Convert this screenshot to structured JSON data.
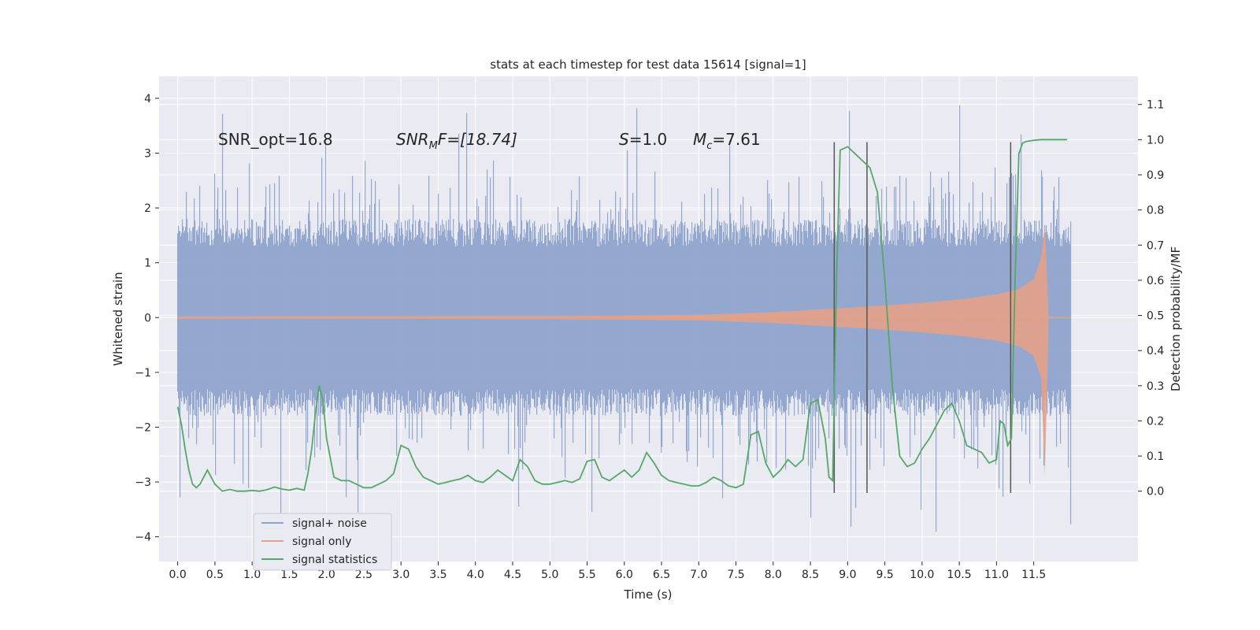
{
  "chart_data": {
    "type": "line",
    "title": "stats at each timestep for test data 15614 [signal=1]",
    "xlabel": "Time (s)",
    "ylabel": "Whitened strain",
    "y2label": "Detection probability/MF",
    "xlim": [
      -0.25,
      12.9
    ],
    "ylim": [
      -4.45,
      4.4
    ],
    "y2lim": [
      -0.2,
      1.18
    ],
    "x_ticks": [
      0.0,
      0.5,
      1.0,
      1.5,
      2.0,
      2.5,
      3.0,
      3.5,
      4.0,
      4.5,
      5.0,
      5.5,
      6.0,
      6.5,
      7.0,
      7.5,
      8.0,
      8.5,
      9.0,
      9.5,
      10.0,
      10.5,
      11.0,
      11.5
    ],
    "x_tick_labels": [
      "0.0",
      "0.5",
      "1.0",
      "1.5",
      "2.0",
      "2.5",
      "3.0",
      "3.5",
      "4.0",
      "4.5",
      "5.0",
      "5.5",
      "6.0",
      "6.5",
      "7.0",
      "7.5",
      "8.0",
      "8.5",
      "9.0",
      "9.5",
      "10.0",
      "10.5",
      "11.0",
      "11.5"
    ],
    "y_ticks": [
      -4,
      -3,
      -2,
      -1,
      0,
      1,
      2,
      3,
      4
    ],
    "y_tick_labels": [
      "−4",
      "−3",
      "−2",
      "−1",
      "0",
      "1",
      "2",
      "3",
      "4"
    ],
    "y2_ticks": [
      0.0,
      0.1,
      0.2,
      0.3,
      0.4,
      0.5,
      0.6,
      0.7,
      0.8,
      0.9,
      1.0,
      1.1
    ],
    "y2_tick_labels": [
      "0.0",
      "0.1",
      "0.2",
      "0.3",
      "0.4",
      "0.5",
      "0.6",
      "0.7",
      "0.8",
      "0.9",
      "1.0",
      "1.1"
    ],
    "grid": true,
    "legend_position": "lower-left",
    "colors": {
      "background": "#eaeaf2",
      "grid": "#ffffff",
      "noise": "#8fa3cc",
      "signal": "#e3a287",
      "stats": "#55a868",
      "vlines": "#555555"
    },
    "series": [
      {
        "name": "signal+ noise",
        "description_values": "noisy whitened strain, envelope approx ±1.3 typical with peaks to ±4",
        "t_range": [
          0.0,
          12.0
        ],
        "typical_amplitude": 1.3,
        "max_amplitude": 4.05
      },
      {
        "name": "signal only",
        "t_range": [
          0.0,
          12.0
        ],
        "envelope": {
          "t": [
            0.0,
            5.0,
            7.0,
            8.0,
            8.5,
            9.0,
            9.5,
            10.0,
            10.5,
            11.0,
            11.3,
            11.5,
            11.6,
            11.65,
            11.7
          ],
          "amp": [
            0.02,
            0.03,
            0.05,
            0.1,
            0.14,
            0.18,
            0.22,
            0.27,
            0.33,
            0.42,
            0.52,
            0.7,
            1.1,
            1.7,
            0.05
          ]
        }
      },
      {
        "name": "signal statistics",
        "axis": "right",
        "x": [
          0.0,
          0.05,
          0.1,
          0.15,
          0.2,
          0.25,
          0.3,
          0.35,
          0.4,
          0.45,
          0.5,
          0.6,
          0.7,
          0.8,
          0.9,
          1.0,
          1.1,
          1.2,
          1.3,
          1.4,
          1.5,
          1.6,
          1.7,
          1.75,
          1.8,
          1.85,
          1.9,
          1.95,
          2.0,
          2.1,
          2.2,
          2.3,
          2.4,
          2.5,
          2.6,
          2.7,
          2.8,
          2.9,
          3.0,
          3.1,
          3.2,
          3.3,
          3.4,
          3.5,
          3.6,
          3.7,
          3.8,
          3.9,
          4.0,
          4.1,
          4.2,
          4.3,
          4.4,
          4.5,
          4.6,
          4.7,
          4.8,
          4.9,
          5.0,
          5.1,
          5.2,
          5.3,
          5.4,
          5.5,
          5.6,
          5.7,
          5.8,
          5.9,
          6.0,
          6.1,
          6.2,
          6.3,
          6.4,
          6.5,
          6.6,
          6.7,
          6.8,
          6.9,
          7.0,
          7.1,
          7.2,
          7.3,
          7.4,
          7.5,
          7.6,
          7.7,
          7.8,
          7.9,
          8.0,
          8.1,
          8.2,
          8.3,
          8.4,
          8.5,
          8.6,
          8.7,
          8.75,
          8.8,
          8.85,
          8.9,
          9.0,
          9.1,
          9.2,
          9.3,
          9.4,
          9.5,
          9.6,
          9.7,
          9.8,
          9.9,
          10.0,
          10.1,
          10.2,
          10.3,
          10.4,
          10.5,
          10.6,
          10.7,
          10.8,
          10.9,
          11.0,
          11.05,
          11.1,
          11.15,
          11.2,
          11.25,
          11.3,
          11.35,
          11.4,
          11.5,
          11.6,
          11.8,
          11.95
        ],
        "values": [
          0.24,
          0.19,
          0.12,
          0.06,
          0.02,
          0.01,
          0.02,
          0.04,
          0.06,
          0.04,
          0.02,
          0.0,
          0.005,
          0.0,
          0.0,
          0.002,
          0.0,
          0.004,
          0.012,
          0.006,
          0.003,
          0.008,
          0.003,
          0.05,
          0.12,
          0.22,
          0.3,
          0.26,
          0.15,
          0.04,
          0.03,
          0.03,
          0.02,
          0.01,
          0.01,
          0.02,
          0.03,
          0.05,
          0.13,
          0.12,
          0.07,
          0.04,
          0.03,
          0.02,
          0.025,
          0.03,
          0.035,
          0.045,
          0.03,
          0.025,
          0.04,
          0.06,
          0.045,
          0.03,
          0.09,
          0.07,
          0.03,
          0.02,
          0.02,
          0.025,
          0.03,
          0.025,
          0.035,
          0.085,
          0.09,
          0.04,
          0.03,
          0.045,
          0.06,
          0.04,
          0.06,
          0.11,
          0.08,
          0.045,
          0.03,
          0.025,
          0.02,
          0.015,
          0.015,
          0.025,
          0.04,
          0.03,
          0.015,
          0.01,
          0.02,
          0.16,
          0.17,
          0.08,
          0.04,
          0.06,
          0.09,
          0.07,
          0.09,
          0.25,
          0.26,
          0.15,
          0.04,
          0.03,
          0.6,
          0.97,
          0.98,
          0.96,
          0.94,
          0.92,
          0.85,
          0.6,
          0.3,
          0.1,
          0.07,
          0.08,
          0.12,
          0.15,
          0.19,
          0.23,
          0.25,
          0.2,
          0.13,
          0.12,
          0.11,
          0.08,
          0.09,
          0.2,
          0.19,
          0.13,
          0.15,
          0.6,
          0.96,
          0.99,
          0.995,
          0.998,
          1.0,
          1.0,
          1.0
        ]
      }
    ],
    "vertical_lines": [
      8.82,
      9.26,
      11.19
    ],
    "annotations": [
      {
        "x": 0.22,
        "y": 3.2,
        "text": "SNR_opt=16.8"
      },
      {
        "x": 2.62,
        "y": 3.2,
        "text_main": "SNR",
        "text_sub": "M",
        "text_tail": "F=[18.74]"
      },
      {
        "x": 5.6,
        "y": 3.2,
        "text_main": "S",
        "text_tail": "=1.0"
      },
      {
        "x": 6.6,
        "y": 3.2,
        "text_main": "M",
        "text_sub": "c",
        "text_tail": "=7.61"
      }
    ]
  }
}
